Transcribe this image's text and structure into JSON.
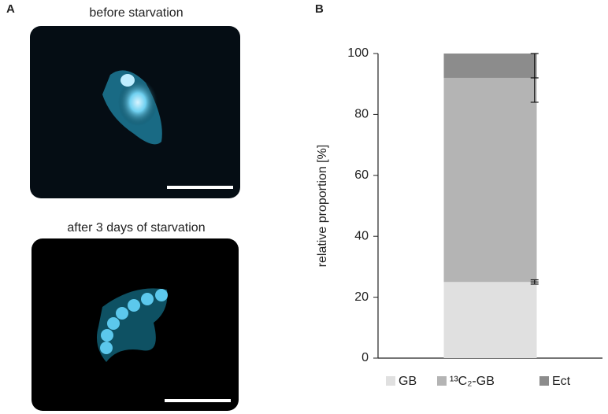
{
  "figure": {
    "panel_a_label": "A",
    "panel_b_label": "B",
    "images": [
      {
        "caption": "before starvation"
      },
      {
        "caption": "after 3 days of starvation"
      }
    ]
  },
  "chart_data": {
    "type": "stacked-bar",
    "y_label": "relative proportion [%]",
    "categories": [
      null
    ],
    "series": [
      {
        "name": "GB",
        "color": "#e0e0e0",
        "values": [
          25
        ],
        "errors": [
          0.7
        ]
      },
      {
        "name": "¹³C₂-GB",
        "color": "#b4b4b4",
        "values": [
          67
        ],
        "errors": [
          8
        ]
      },
      {
        "name": "Ect",
        "color": "#8c8c8c",
        "values": [
          8
        ]
      }
    ],
    "ylim": [
      0,
      100
    ],
    "yticks": [
      0,
      20,
      40,
      60,
      80,
      100
    ],
    "grid": false
  }
}
